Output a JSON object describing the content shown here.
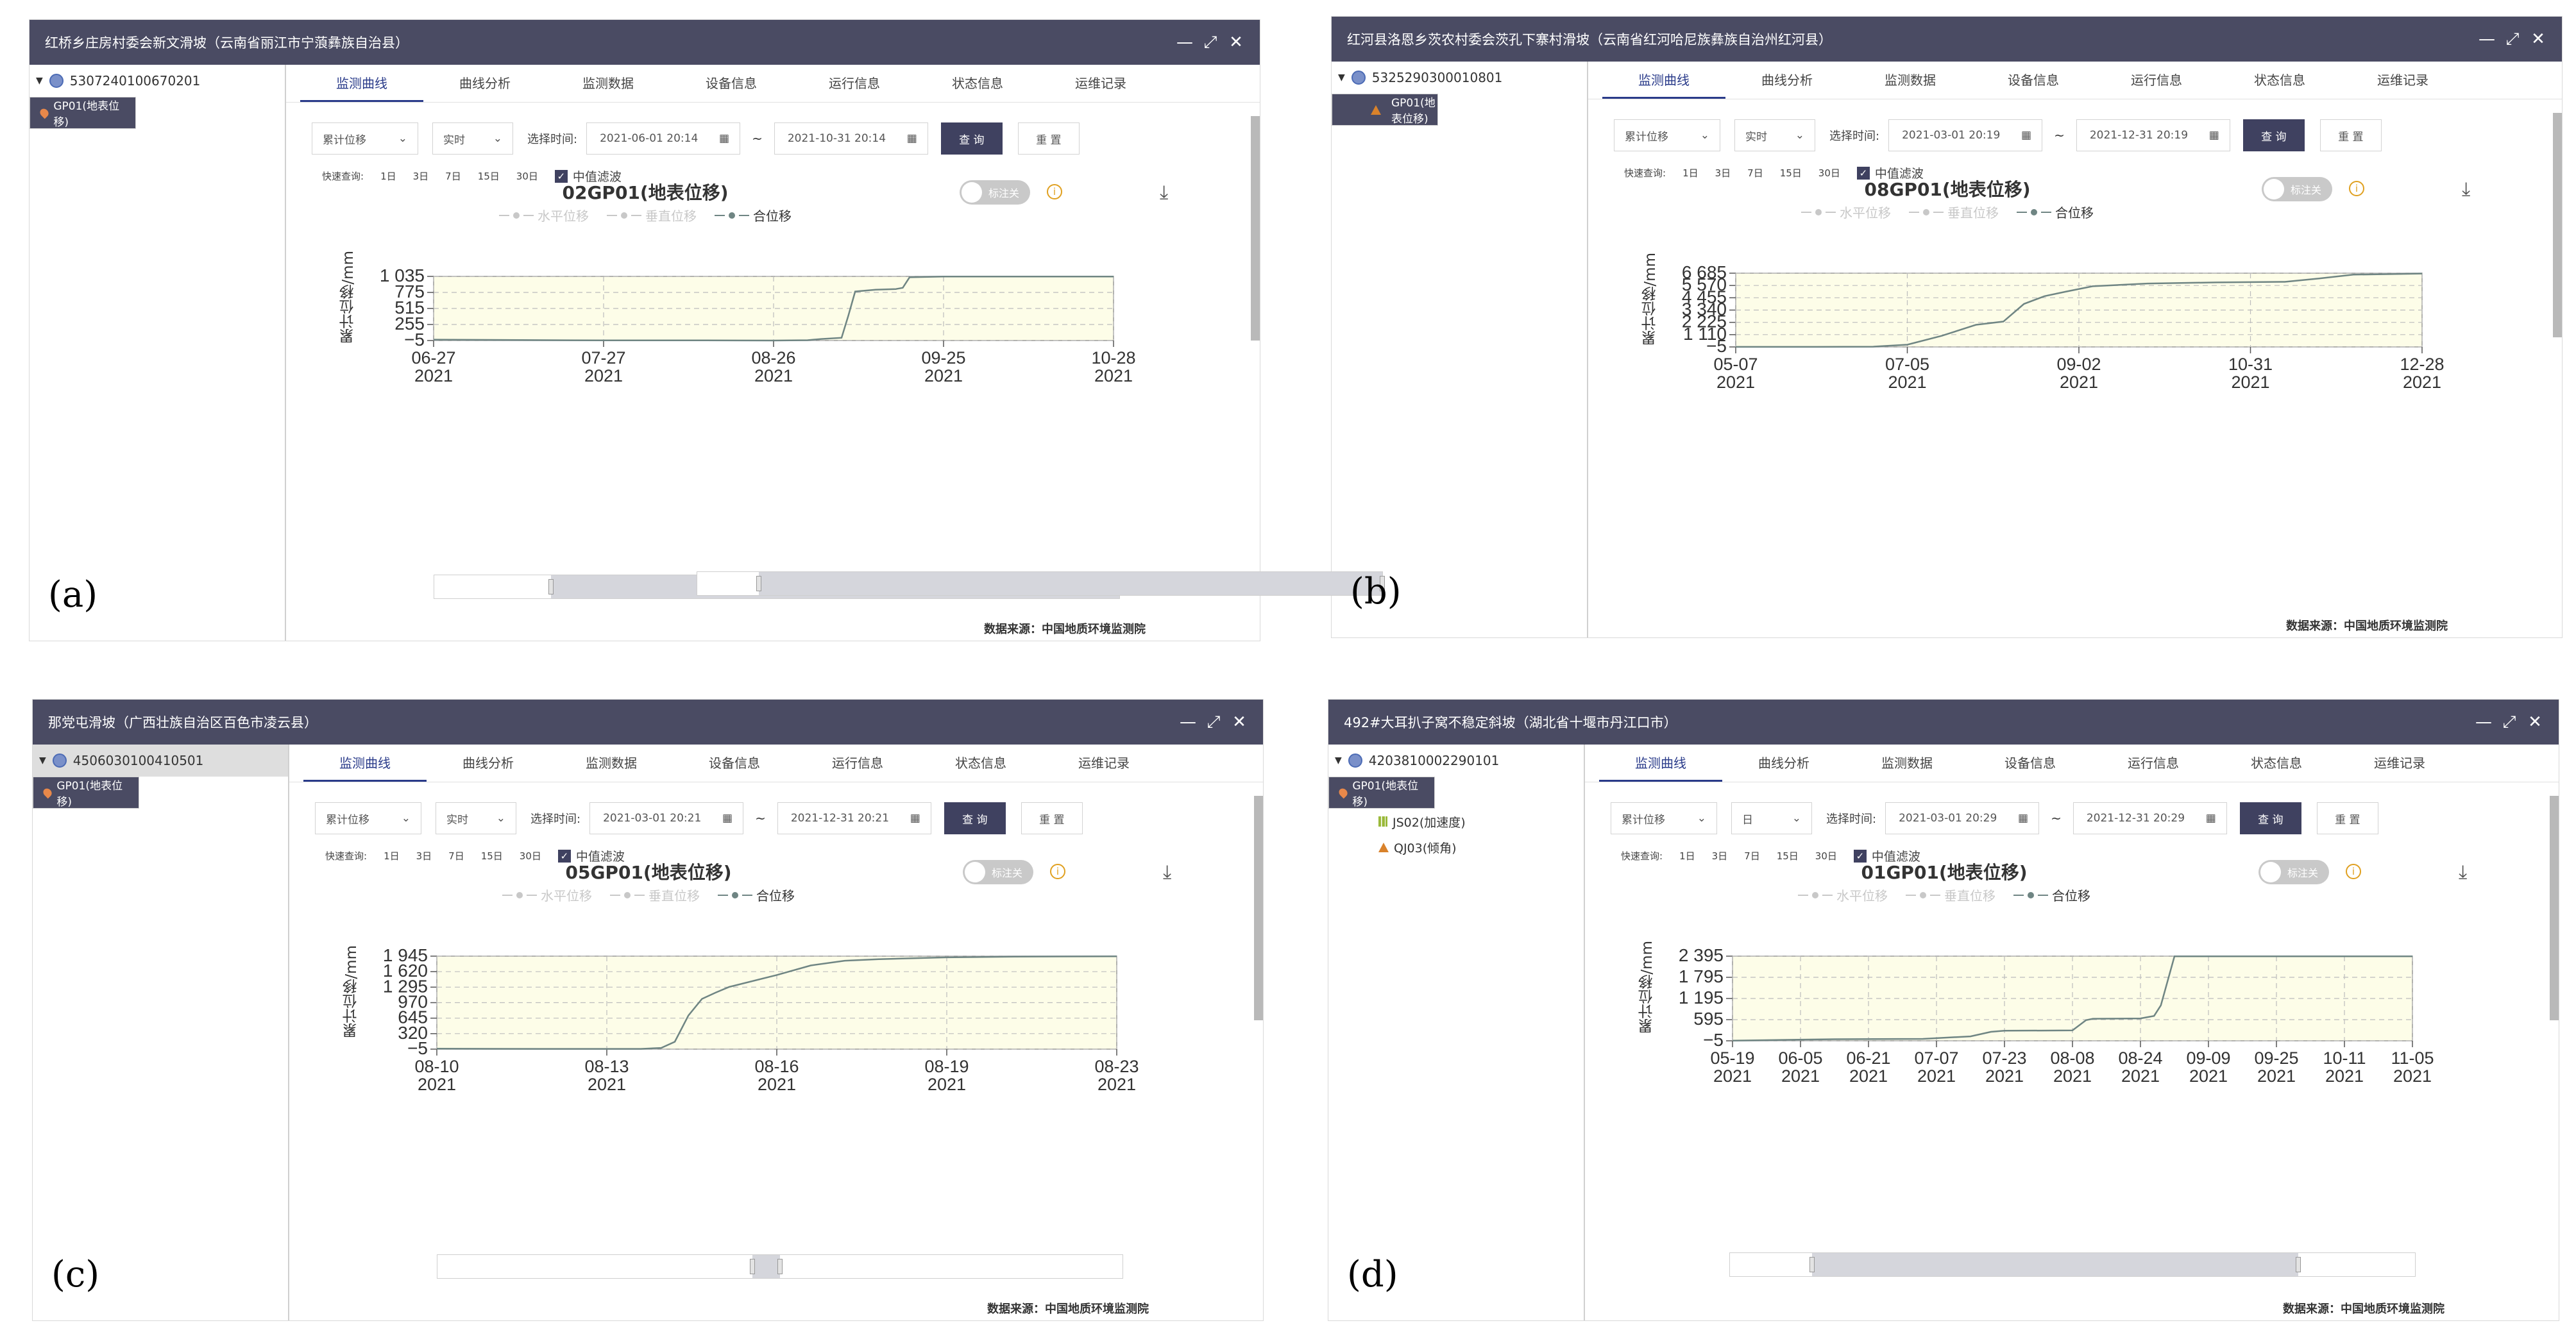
{
  "common": {
    "tabs": [
      "监测曲线",
      "曲线分析",
      "监测数据",
      "设备信息",
      "运行信息",
      "状态信息",
      "运维记录"
    ],
    "active_tab": 0,
    "type_select": "累计位移",
    "select_time_label": "选择时间:",
    "query_label": "查 询",
    "reset_label": "重 置",
    "quick_label": "快速查询:",
    "quick_options": [
      "1日",
      "3日",
      "7日",
      "15日",
      "30日"
    ],
    "median_filter_label": "中值滤波",
    "tilde": "~",
    "toggle_label": "标注关",
    "legend": [
      "水平位移",
      "垂直位移",
      "合位移"
    ],
    "ylabel": "累计位移/mm",
    "source_label": "数据来源：中国地质环境监测院",
    "colors": {
      "titlebar": "#4a4b63",
      "plot_bg": "#fdfde8",
      "line": "#6f8583",
      "legend_inactive": "#c8c8c8",
      "accent": "#2a3b8a"
    },
    "icons": {
      "minimize": "minimize-icon",
      "maximize": "maximize-icon",
      "close": "close-icon",
      "download": "download-icon",
      "info": "info-icon",
      "calendar": "calendar-icon"
    }
  },
  "panels": [
    {
      "tag": "(a)",
      "title": "红桥乡庄房村委会新文滑坡（云南省丽江市宁蒗彝族自治县）",
      "tree_root": "5307240100670201",
      "tree_items": [
        {
          "label": "GP01(地表位移)",
          "icon": "pin",
          "selected": true
        }
      ],
      "root_selected": false,
      "interval": "实时",
      "start": "2021-06-01 20:14",
      "end": "2021-10-31 20:14",
      "chart_data": {
        "type": "line",
        "title": "02GP01(地表位移)",
        "xlabel": "",
        "ylabel": "累计位移/mm",
        "x_ticks": [
          "06-27\n2021",
          "07-27\n2021",
          "08-26\n2021",
          "09-25\n2021",
          "10-28\n2021"
        ],
        "y_ticks": [
          "1 035",
          "775",
          "515",
          "255",
          "−5"
        ],
        "ylim": [
          -5,
          1035
        ],
        "series": [
          {
            "name": "合位移",
            "x": [
              0,
              0.08,
              0.25,
              0.4,
              0.5,
              0.55,
              0.57,
              0.6,
              0.61,
              0.62,
              0.65,
              0.68,
              0.69,
              0.7,
              0.75,
              0.85,
              1.0
            ],
            "y": [
              10,
              5,
              -3,
              -3,
              -5,
              0,
              20,
              40,
              400,
              790,
              820,
              830,
              850,
              1020,
              1032,
              1033,
              1032
            ]
          }
        ],
        "grid": true,
        "legend_position": "top"
      },
      "slider": [
        0.17,
        1.0
      ]
    },
    {
      "tag": "(b)",
      "title": "红河县洛恩乡茨农村委会茨孔下寨村滑坡（云南省红河哈尼族彝族自治州红河县）",
      "tree_root": "5325290300010801",
      "tree_items": [
        {
          "label": "GP01(地表位移)",
          "icon": "warn-pin",
          "selected": true
        }
      ],
      "root_selected": false,
      "interval": "实时",
      "start": "2021-03-01 20:19",
      "end": "2021-12-31 20:19",
      "chart_data": {
        "type": "line",
        "title": "08GP01(地表位移)",
        "xlabel": "",
        "ylabel": "累计位移/mm",
        "x_ticks": [
          "05-07\n2021",
          "07-05\n2021",
          "09-02\n2021",
          "10-31\n2021",
          "12-28\n2021"
        ],
        "y_ticks": [
          "6 685",
          "5 570",
          "4 455",
          "3 340",
          "2 225",
          "1 110",
          "−5"
        ],
        "ylim": [
          -5,
          6685
        ],
        "series": [
          {
            "name": "合位移",
            "x": [
              0,
              0.12,
              0.2,
              0.25,
              0.3,
              0.35,
              0.39,
              0.42,
              0.45,
              0.48,
              0.52,
              0.6,
              0.7,
              0.8,
              0.85,
              0.9,
              1.0
            ],
            "y": [
              0,
              0,
              20,
              200,
              1000,
              2000,
              2300,
              3900,
              4600,
              5000,
              5500,
              5750,
              5850,
              5900,
              6200,
              6550,
              6650
            ]
          }
        ],
        "grid": true,
        "legend_position": "top"
      },
      "slider": [
        0.09,
        1.0
      ]
    },
    {
      "tag": "(c)",
      "title": "那党屯滑坡（广西壮族自治区百色市凌云县）",
      "tree_root": "4506030100410501",
      "tree_items": [
        {
          "label": "GP01(地表位移)",
          "icon": "pin",
          "selected": true
        }
      ],
      "root_selected": true,
      "interval": "实时",
      "start": "2021-03-01 20:21",
      "end": "2021-12-31 20:21",
      "chart_data": {
        "type": "line",
        "title": "05GP01(地表位移)",
        "xlabel": "",
        "ylabel": "累计位移/mm",
        "x_ticks": [
          "08-10\n2021",
          "08-13\n2021",
          "08-16\n2021",
          "08-19\n2021",
          "08-23\n2021"
        ],
        "y_ticks": [
          "1 945",
          "1 620",
          "1 295",
          "970",
          "645",
          "320",
          "−5"
        ],
        "ylim": [
          -5,
          1945
        ],
        "series": [
          {
            "name": "合位移",
            "x": [
              0,
              0.15,
              0.3,
              0.33,
              0.35,
              0.37,
              0.39,
              0.41,
              0.43,
              0.5,
              0.55,
              0.6,
              0.65,
              0.75,
              0.85,
              1.0
            ],
            "y": [
              5,
              0,
              0,
              20,
              150,
              700,
              1050,
              1180,
              1300,
              1550,
              1750,
              1850,
              1880,
              1920,
              1935,
              1942
            ]
          }
        ],
        "grid": true,
        "legend_position": "top"
      },
      "slider": [
        0.46,
        0.5
      ]
    },
    {
      "tag": "(d)",
      "title": "492#大耳扒子窝不稳定斜坡（湖北省十堰市丹江口市）",
      "tree_root": "4203810002290101",
      "tree_items": [
        {
          "label": "GP01(地表位移)",
          "icon": "pin",
          "selected": true
        },
        {
          "label": "JS02(加速度)",
          "icon": "bars",
          "selected": false
        },
        {
          "label": "QJ03(倾角)",
          "icon": "warn",
          "selected": false
        }
      ],
      "root_selected": false,
      "interval": "日",
      "start": "2021-03-01 20:29",
      "end": "2021-12-31 20:29",
      "chart_data": {
        "type": "line",
        "title": "01GP01(地表位移)",
        "xlabel": "",
        "ylabel": "累计位移/mm",
        "x_ticks": [
          "05-19\n2021",
          "06-05\n2021",
          "06-21\n2021",
          "07-07\n2021",
          "07-23\n2021",
          "08-08\n2021",
          "08-24\n2021",
          "09-09\n2021",
          "09-25\n2021",
          "10-11\n2021",
          "11-05\n2021"
        ],
        "y_ticks": [
          "2 395",
          "1 795",
          "1 195",
          "595",
          "−5"
        ],
        "ylim": [
          -5,
          2395
        ],
        "series": [
          {
            "name": "合位移",
            "x": [
              0,
              0.15,
              0.28,
              0.35,
              0.38,
              0.4,
              0.5,
              0.52,
              0.53,
              0.6,
              0.62,
              0.63,
              0.65,
              0.7,
              0.8,
              1.0
            ],
            "y": [
              0,
              40,
              50,
              120,
              250,
              280,
              290,
              580,
              620,
              630,
              700,
              1000,
              2390,
              2390,
              2390,
              2392
            ]
          }
        ],
        "grid": true,
        "legend_position": "top"
      },
      "slider": [
        0.12,
        0.83
      ]
    }
  ]
}
